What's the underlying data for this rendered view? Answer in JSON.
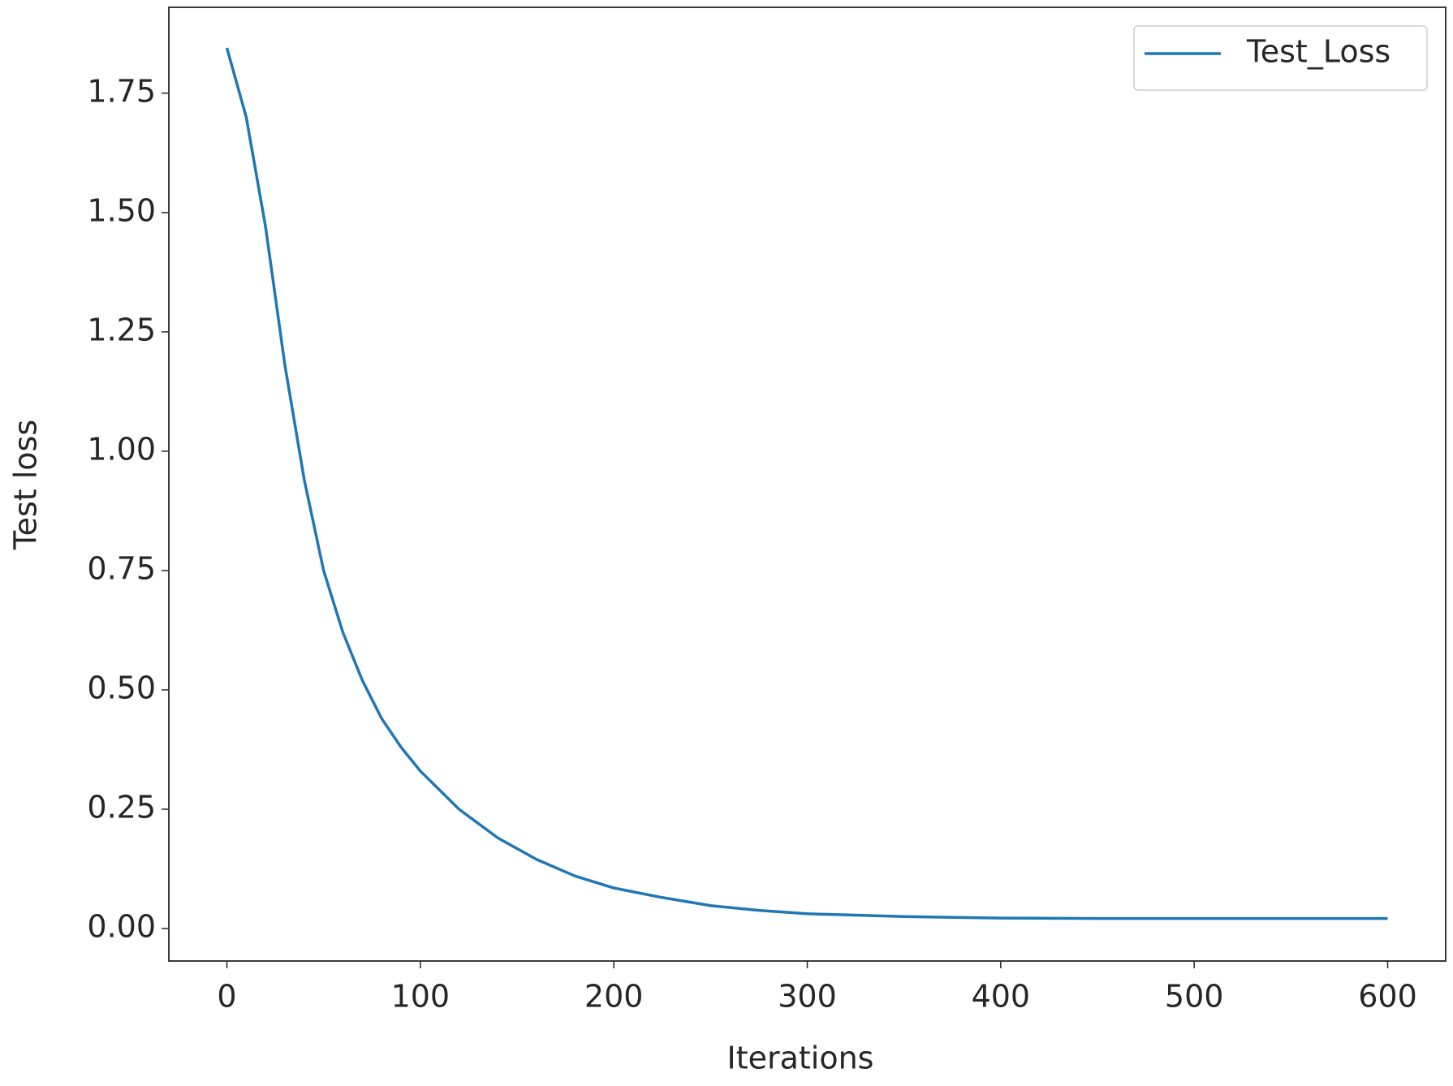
{
  "chart_data": {
    "type": "line",
    "xlabel": "Iterations",
    "ylabel": "Test loss",
    "x": [
      0,
      10,
      20,
      30,
      40,
      50,
      60,
      70,
      80,
      90,
      100,
      120,
      140,
      160,
      180,
      200,
      225,
      250,
      275,
      300,
      350,
      400,
      450,
      500,
      550,
      600
    ],
    "series": [
      {
        "name": "Test_Loss",
        "color": "#1f77b4",
        "values": [
          1.845,
          1.7,
          1.47,
          1.18,
          0.94,
          0.75,
          0.62,
          0.52,
          0.44,
          0.38,
          0.33,
          0.25,
          0.19,
          0.145,
          0.11,
          0.085,
          0.065,
          0.048,
          0.038,
          0.031,
          0.025,
          0.022,
          0.021,
          0.021,
          0.021,
          0.021
        ]
      }
    ],
    "xlim": [
      -30,
      630
    ],
    "xticks": [
      0,
      100,
      200,
      300,
      400,
      500,
      600
    ],
    "ylim": [
      -0.068,
      1.93
    ],
    "yticks": [
      {
        "value": 0,
        "label": "0.00"
      },
      {
        "value": 0.25,
        "label": "0.25"
      },
      {
        "value": 0.5,
        "label": "0.50"
      },
      {
        "value": 0.75,
        "label": "0.75"
      },
      {
        "value": 1,
        "label": "1.00"
      },
      {
        "value": 1.25,
        "label": "1.25"
      },
      {
        "value": 1.5,
        "label": "1.50"
      },
      {
        "value": 1.75,
        "label": "1.75"
      }
    ],
    "legend": "upper right"
  }
}
